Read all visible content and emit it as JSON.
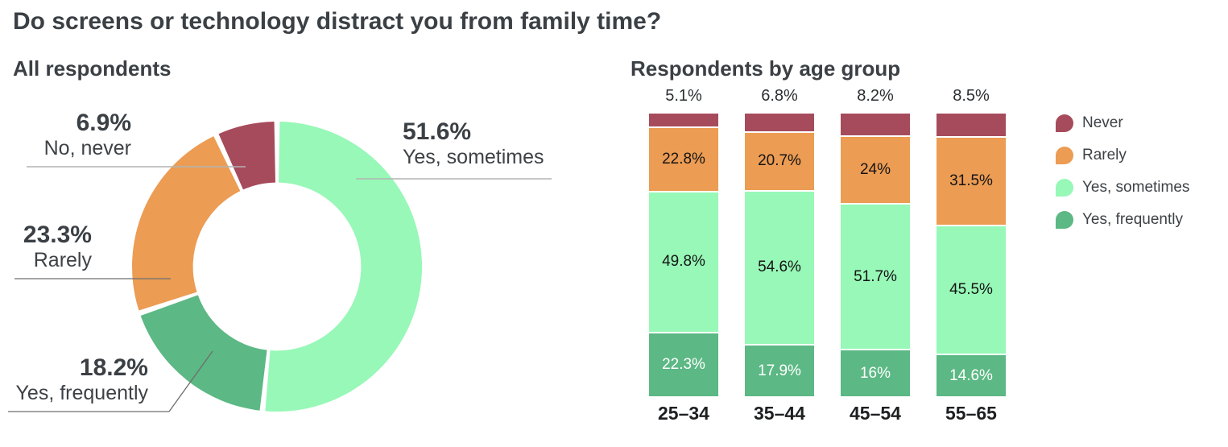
{
  "title": "Do screens or technology distract you from family time?",
  "chart_data": [
    {
      "type": "pie",
      "subtype": "donut",
      "title": "All respondents",
      "labels": [
        "Yes, sometimes",
        "Yes, frequently",
        "Rarely",
        "No, never"
      ],
      "values": [
        51.6,
        18.2,
        23.3,
        6.9
      ],
      "display_values": [
        "51.6%",
        "18.2%",
        "23.3%",
        "6.9%"
      ],
      "colors": [
        "#97f8b7",
        "#5cb884",
        "#ec9c53",
        "#a64b5c"
      ],
      "start_angle_deg": 0,
      "direction": "clockwise",
      "hole_ratio": 0.58
    },
    {
      "type": "bar",
      "subtype": "stacked-100-percent",
      "title": "Respondents by age group",
      "categories": [
        "25–34",
        "35–44",
        "45–54",
        "55–65"
      ],
      "series": [
        {
          "name": "Never",
          "color": "#a64b5c",
          "values": [
            5.1,
            6.8,
            8.2,
            8.5
          ],
          "display": [
            "5.1%",
            "6.8%",
            "8.2%",
            "8.5%"
          ],
          "label_position": "above",
          "label_color": "#2b2e31"
        },
        {
          "name": "Rarely",
          "color": "#ec9c53",
          "values": [
            22.8,
            20.7,
            24,
            31.5
          ],
          "display": [
            "22.8%",
            "20.7%",
            "24%",
            "31.5%"
          ],
          "label_position": "inside",
          "label_color": "#141414"
        },
        {
          "name": "Yes, sometimes",
          "color": "#97f8b7",
          "values": [
            49.8,
            54.6,
            51.7,
            45.5
          ],
          "display": [
            "49.8%",
            "54.6%",
            "51.7%",
            "45.5%"
          ],
          "label_position": "inside",
          "label_color": "#141414"
        },
        {
          "name": "Yes, frequently",
          "color": "#5cb884",
          "values": [
            22.3,
            17.9,
            16,
            14.6
          ],
          "display": [
            "22.3%",
            "17.9%",
            "16%",
            "14.6%"
          ],
          "label_position": "inside",
          "label_color": "#ffffff"
        }
      ],
      "legend_position": "right",
      "grid": false,
      "ylim": [
        0,
        100
      ]
    }
  ]
}
